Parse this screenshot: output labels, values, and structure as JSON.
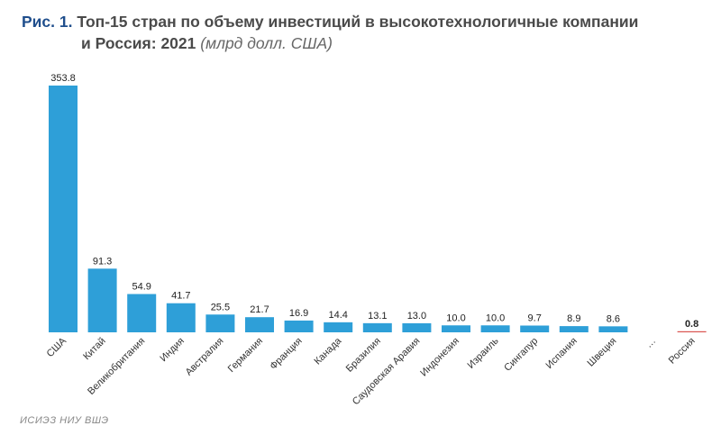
{
  "title": {
    "figure": "Рис. 1.",
    "line1": "Топ-15 стран по объему инвестиций в высокотехнологичные компании",
    "line2": "и Россия: 2021",
    "unit": "(млрд долл. США)"
  },
  "source": "ИСИЭЗ НИУ ВШЭ",
  "colors": {
    "bar": "#2e9fd8",
    "highlight": "#d9534f",
    "title_accent": "#1f4e8c"
  },
  "chart_data": {
    "type": "bar",
    "title": "Топ-15 стран по объему инвестиций в высокотехнологичные компании и Россия: 2021",
    "ylabel": "млрд долл. США",
    "ylim": [
      0,
      353.8
    ],
    "grid": false,
    "categories": [
      "США",
      "Китай",
      "Великобритания",
      "Индия",
      "Австралия",
      "Германия",
      "Франция",
      "Канада",
      "Бразилия",
      "Саудовская Аравия",
      "Индонезия",
      "Израиль",
      "Сингапур",
      "Испания",
      "Швеция",
      "…",
      "Россия"
    ],
    "values": [
      353.8,
      91.3,
      54.9,
      41.7,
      25.5,
      21.7,
      16.9,
      14.4,
      13.1,
      13.0,
      10.0,
      10.0,
      9.7,
      8.9,
      8.6,
      null,
      0.8
    ],
    "labels": [
      "353.8",
      "91.3",
      "54.9",
      "41.7",
      "25.5",
      "21.7",
      "16.9",
      "14.4",
      "13.1",
      "13.0",
      "10.0",
      "10.0",
      "9.7",
      "8.9",
      "8.6",
      "",
      "0.8"
    ],
    "highlight": "Россия"
  }
}
